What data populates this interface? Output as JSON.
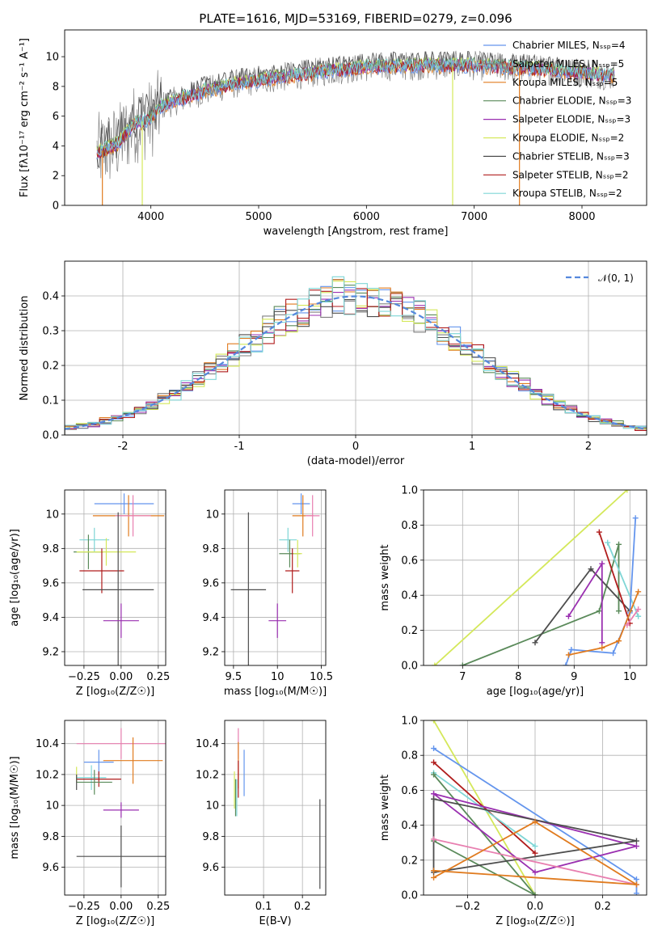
{
  "title": "PLATE=1616, MJD=53169, FIBERID=0279, z=0.096",
  "colors": {
    "chabrier_miles": "#6495ed",
    "salpeter_miles": "#808080",
    "kroupa_miles": "#e07b1f",
    "chabrier_elodie": "#5a8a5a",
    "salpeter_elodie": "#9a2fb0",
    "kroupa_elodie": "#d4e85a",
    "chabrier_stelib": "#4d4d4d",
    "salpeter_stelib": "#b01c1c",
    "kroupa_stelib": "#7fd6d6",
    "extra_pink": "#e87fb0"
  },
  "chart_data": [
    {
      "id": "spectrum",
      "type": "line",
      "title": "PLATE=1616, MJD=53169, FIBERID=0279, z=0.096",
      "xlabel": "wavelength [Angstrom, rest frame]",
      "ylabel": "Flux [fλ10⁻¹⁷ erg cm⁻² s⁻¹ A⁻¹]",
      "xlim": [
        3200,
        8600
      ],
      "ylim": [
        0,
        11.8
      ],
      "xticks": [
        4000,
        5000,
        6000,
        7000,
        8000
      ],
      "yticks": [
        0,
        2,
        4,
        6,
        8,
        10
      ],
      "legend_position": "upper-right",
      "series": [
        {
          "name": "Chabrier MILES, Nₛₛₚ=4",
          "color_key": "chabrier_miles"
        },
        {
          "name": "Salpeter MILES, Nₛₛₚ=5",
          "color_key": "salpeter_miles"
        },
        {
          "name": "Kroupa MILES, Nₛₛₚ=5",
          "color_key": "kroupa_miles"
        },
        {
          "name": "Chabrier ELODIE, Nₛₛₚ=3",
          "color_key": "chabrier_elodie"
        },
        {
          "name": "Salpeter ELODIE, Nₛₛₚ=3",
          "color_key": "salpeter_elodie"
        },
        {
          "name": "Kroupa ELODIE, Nₛₛₚ=2",
          "color_key": "kroupa_elodie"
        },
        {
          "name": "Chabrier STELIB, Nₛₛₚ=3",
          "color_key": "chabrier_stelib"
        },
        {
          "name": "Salpeter STELIB, Nₛₛₚ=2",
          "color_key": "salpeter_stelib"
        },
        {
          "name": "Kroupa STELIB, Nₛₛₚ=2",
          "color_key": "kroupa_stelib"
        }
      ],
      "continuum": [
        [
          3500,
          3.5
        ],
        [
          3700,
          4.2
        ],
        [
          3850,
          5.5
        ],
        [
          4000,
          5.8
        ],
        [
          4100,
          6.7
        ],
        [
          4300,
          7.2
        ],
        [
          4500,
          7.7
        ],
        [
          4800,
          8.2
        ],
        [
          5200,
          8.6
        ],
        [
          5600,
          9.0
        ],
        [
          6000,
          9.3
        ],
        [
          6500,
          9.4
        ],
        [
          7000,
          9.4
        ],
        [
          7500,
          9.2
        ],
        [
          8000,
          8.9
        ],
        [
          8300,
          8.7
        ]
      ],
      "spikes": [
        {
          "x": 3550,
          "y": 0,
          "color_key": "kroupa_miles"
        },
        {
          "x": 3920,
          "y": 0,
          "color_key": "kroupa_elodie"
        },
        {
          "x": 6800,
          "y": 0,
          "color_key": "kroupa_elodie"
        },
        {
          "x": 7420,
          "y": 0,
          "color_key": "kroupa_miles"
        }
      ]
    },
    {
      "id": "residuals",
      "type": "histogram",
      "xlabel": "(data-model)/error",
      "ylabel": "Normed distribution",
      "xlim": [
        -2.5,
        2.5
      ],
      "ylim": [
        0,
        0.5
      ],
      "xticks": [
        -2,
        -1,
        0,
        1,
        2
      ],
      "yticks": [
        0.0,
        0.1,
        0.2,
        0.3,
        0.4
      ],
      "grid": true,
      "bin_width": 0.1,
      "legend_position": "upper-right",
      "reference_curve": {
        "name": "𝒩(0, 1)",
        "color": "#5588dd",
        "style": "dashed"
      }
    },
    {
      "id": "age_vs_Z",
      "type": "errorbar",
      "xlabel": "Z [log₁₀(Z/Z☉)]",
      "ylabel": "age  [log₁₀(age/yr)]",
      "xlim": [
        -0.38,
        0.3
      ],
      "ylim": [
        9.12,
        10.14
      ],
      "xticks": [
        -0.25,
        0.0,
        0.25
      ],
      "xticklabels": [
        "−0.25",
        "0.00",
        "0.25"
      ],
      "yticks": [
        9.2,
        9.4,
        9.6,
        9.8,
        10.0
      ],
      "grid": true,
      "points": [
        {
          "x": 0.02,
          "y": 10.06,
          "xerr": 0.2,
          "yerr": 0.06,
          "color_key": "chabrier_miles"
        },
        {
          "x": 0.05,
          "y": 9.99,
          "xerr": 0.24,
          "yerr": 0.12,
          "color_key": "kroupa_miles"
        },
        {
          "x": 0.08,
          "y": 9.99,
          "xerr": 0.12,
          "yerr": 0.12,
          "color_key": "extra_pink"
        },
        {
          "x": -0.18,
          "y": 9.85,
          "xerr": 0.1,
          "yerr": 0.07,
          "color_key": "kroupa_stelib"
        },
        {
          "x": -0.22,
          "y": 9.78,
          "xerr": 0.1,
          "yerr": 0.1,
          "color_key": "chabrier_elodie"
        },
        {
          "x": -0.1,
          "y": 9.78,
          "xerr": 0.2,
          "yerr": 0.08,
          "color_key": "kroupa_elodie"
        },
        {
          "x": -0.13,
          "y": 9.67,
          "xerr": 0.15,
          "yerr": 0.13,
          "color_key": "salpeter_stelib"
        },
        {
          "x": -0.02,
          "y": 9.56,
          "xerr": 0.24,
          "yerr": 0.45,
          "color_key": "chabrier_stelib"
        },
        {
          "x": 0.0,
          "y": 9.38,
          "xerr": 0.12,
          "yerr": 0.1,
          "color_key": "salpeter_elodie"
        }
      ]
    },
    {
      "id": "age_vs_mass",
      "type": "errorbar",
      "xlabel": "mass [log₁₀(M/M☉)]",
      "ylabel": "",
      "xlim": [
        9.4,
        10.55
      ],
      "ylim": [
        9.12,
        10.14
      ],
      "xticks": [
        9.5,
        10.0,
        10.5
      ],
      "yticks": [
        9.2,
        9.4,
        9.6,
        9.8,
        10.0
      ],
      "grid": true,
      "points": [
        {
          "x": 10.27,
          "y": 10.06,
          "xerr": 0.1,
          "yerr": 0.06,
          "color_key": "chabrier_miles"
        },
        {
          "x": 10.29,
          "y": 9.99,
          "xerr": 0.12,
          "yerr": 0.12,
          "color_key": "kroupa_miles"
        },
        {
          "x": 10.4,
          "y": 9.99,
          "xerr": 0.08,
          "yerr": 0.12,
          "color_key": "extra_pink"
        },
        {
          "x": 10.12,
          "y": 9.85,
          "xerr": 0.1,
          "yerr": 0.07,
          "color_key": "kroupa_stelib"
        },
        {
          "x": 10.14,
          "y": 9.77,
          "xerr": 0.12,
          "yerr": 0.08,
          "color_key": "chabrier_elodie"
        },
        {
          "x": 10.23,
          "y": 9.77,
          "xerr": 0.05,
          "yerr": 0.08,
          "color_key": "kroupa_elodie"
        },
        {
          "x": 10.17,
          "y": 9.67,
          "xerr": 0.08,
          "yerr": 0.13,
          "color_key": "salpeter_stelib"
        },
        {
          "x": 9.67,
          "y": 9.56,
          "xerr": 0.2,
          "yerr": 0.45,
          "color_key": "chabrier_stelib"
        },
        {
          "x": 10.0,
          "y": 9.38,
          "xerr": 0.1,
          "yerr": 0.1,
          "color_key": "salpeter_elodie"
        }
      ]
    },
    {
      "id": "weight_vs_age",
      "type": "line",
      "xlabel": "age  [log₁₀(age/yr)]",
      "ylabel": "mass weight",
      "xlim": [
        6.3,
        10.3
      ],
      "ylim": [
        0,
        1.0
      ],
      "xticks": [
        7,
        8,
        9,
        10
      ],
      "yticks": [
        0.0,
        0.2,
        0.4,
        0.6,
        0.8,
        1.0
      ],
      "grid": true,
      "series": [
        {
          "color_key": "kroupa_elodie",
          "x": [
            6.5,
            9.95
          ],
          "y": [
            0.0,
            1.0
          ]
        },
        {
          "color_key": "chabrier_elodie",
          "x": [
            7.0,
            9.45,
            9.8,
            9.8
          ],
          "y": [
            0.0,
            0.31,
            0.69,
            0.31
          ]
        },
        {
          "color_key": "chabrier_stelib",
          "x": [
            8.3,
            9.3,
            10.0
          ],
          "y": [
            0.13,
            0.55,
            0.31
          ]
        },
        {
          "color_key": "salpeter_elodie",
          "x": [
            8.9,
            9.5,
            9.5
          ],
          "y": [
            0.28,
            0.58,
            0.13
          ]
        },
        {
          "color_key": "salpeter_stelib",
          "x": [
            9.45,
            10.0
          ],
          "y": [
            0.76,
            0.24
          ]
        },
        {
          "color_key": "kroupa_stelib",
          "x": [
            9.6,
            10.15
          ],
          "y": [
            0.7,
            0.28
          ]
        },
        {
          "color_key": "chabrier_miles",
          "x": [
            8.85,
            8.95,
            9.7,
            10.0,
            10.1
          ],
          "y": [
            0.0,
            0.09,
            0.07,
            0.3,
            0.84
          ]
        },
        {
          "color_key": "kroupa_miles",
          "x": [
            8.9,
            9.5,
            9.8,
            10.15
          ],
          "y": [
            0.06,
            0.1,
            0.14,
            0.42
          ]
        },
        {
          "color_key": "extra_pink",
          "x": [
            9.95,
            10.15
          ],
          "y": [
            0.23,
            0.32
          ]
        }
      ]
    },
    {
      "id": "mass_vs_Z",
      "type": "errorbar",
      "xlabel": "Z [log₁₀(Z/Z☉)]",
      "ylabel": "mass [log₁₀(M/M☉)]",
      "xlim": [
        -0.38,
        0.3
      ],
      "ylim": [
        9.42,
        10.55
      ],
      "xticks": [
        -0.25,
        0.0,
        0.25
      ],
      "xticklabels": [
        "−0.25",
        "0.00",
        "0.25"
      ],
      "yticks": [
        9.6,
        9.8,
        10.0,
        10.2,
        10.4
      ],
      "grid": true,
      "points": [
        {
          "x": 0.0,
          "y": 10.4,
          "xerr": 0.3,
          "yerr": 0.1,
          "color_key": "extra_pink"
        },
        {
          "x": 0.08,
          "y": 10.29,
          "xerr": 0.2,
          "yerr": 0.15,
          "color_key": "kroupa_miles"
        },
        {
          "x": -0.15,
          "y": 10.28,
          "xerr": 0.1,
          "yerr": 0.08,
          "color_key": "chabrier_miles"
        },
        {
          "x": -0.3,
          "y": 10.2,
          "xerr": 0.0,
          "yerr": 0.05,
          "color_key": "kroupa_elodie"
        },
        {
          "x": -0.2,
          "y": 10.18,
          "xerr": 0.1,
          "yerr": 0.08,
          "color_key": "kroupa_stelib"
        },
        {
          "x": -0.15,
          "y": 10.17,
          "xerr": 0.15,
          "yerr": 0.05,
          "color_key": "salpeter_stelib"
        },
        {
          "x": -0.18,
          "y": 10.15,
          "xerr": 0.12,
          "yerr": 0.08,
          "color_key": "chabrier_elodie"
        },
        {
          "x": -0.3,
          "y": 10.15,
          "xerr": 0.0,
          "yerr": 0.05,
          "color_key": "chabrier_stelib"
        },
        {
          "x": 0.0,
          "y": 9.97,
          "xerr": 0.12,
          "yerr": 0.05,
          "color_key": "salpeter_elodie"
        },
        {
          "x": 0.0,
          "y": 9.67,
          "xerr": 0.3,
          "yerr": 0.2,
          "color_key": "chabrier_stelib"
        }
      ]
    },
    {
      "id": "mass_vs_EBV",
      "type": "errorbar",
      "xlabel": "E(B-V)",
      "ylabel": "",
      "xlim": [
        0.0,
        0.26
      ],
      "ylim": [
        9.42,
        10.55
      ],
      "xticks": [
        0.1,
        0.2
      ],
      "yticks": [
        9.6,
        9.8,
        10.0,
        10.2,
        10.4
      ],
      "grid": true,
      "points": [
        {
          "x": 0.035,
          "y": 10.4,
          "yerr": 0.1,
          "color_key": "extra_pink"
        },
        {
          "x": 0.035,
          "y": 10.26,
          "yerr": 0.15,
          "color_key": "kroupa_miles"
        },
        {
          "x": 0.05,
          "y": 10.21,
          "yerr": 0.15,
          "color_key": "chabrier_miles"
        },
        {
          "x": 0.035,
          "y": 10.17,
          "yerr": 0.12,
          "color_key": "salpeter_stelib"
        },
        {
          "x": 0.025,
          "y": 10.1,
          "yerr": 0.12,
          "color_key": "kroupa_elodie"
        },
        {
          "x": 0.028,
          "y": 10.05,
          "yerr": 0.12,
          "color_key": "chabrier_elodie"
        },
        {
          "x": 0.031,
          "y": 10.05,
          "yerr": 0.12,
          "color_key": "kroupa_stelib"
        },
        {
          "x": 0.245,
          "y": 9.75,
          "yerr": 0.29,
          "color_key": "chabrier_stelib"
        }
      ]
    },
    {
      "id": "weight_vs_Z",
      "type": "line",
      "xlabel": "Z [log₁₀(Z/Z☉)]",
      "ylabel": "mass weight",
      "xlim": [
        -0.33,
        0.33
      ],
      "ylim": [
        0,
        1.0
      ],
      "xticks": [
        -0.2,
        0.0,
        0.2
      ],
      "xticklabels": [
        "−0.2",
        "0.0",
        "0.2"
      ],
      "yticks": [
        0.0,
        0.2,
        0.4,
        0.6,
        0.8,
        1.0
      ],
      "grid": true,
      "series": [
        {
          "color_key": "kroupa_elodie",
          "x": [
            -0.3,
            0.0
          ],
          "y": [
            1.0,
            0.0
          ]
        },
        {
          "color_key": "chabrier_miles",
          "x": [
            -0.3,
            0.3,
            0.3
          ],
          "y": [
            0.84,
            0.09,
            0.01
          ]
        },
        {
          "color_key": "salpeter_stelib",
          "x": [
            -0.3,
            0.0
          ],
          "y": [
            0.76,
            0.24
          ]
        },
        {
          "color_key": "kroupa_stelib",
          "x": [
            -0.3,
            0.0
          ],
          "y": [
            0.7,
            0.28
          ]
        },
        {
          "color_key": "chabrier_elodie",
          "x": [
            -0.3,
            0.0,
            -0.3
          ],
          "y": [
            0.69,
            0.0,
            0.31
          ]
        },
        {
          "color_key": "salpeter_elodie",
          "x": [
            -0.3,
            0.0,
            0.3,
            -0.3
          ],
          "y": [
            0.58,
            0.13,
            0.28,
            0.58
          ]
        },
        {
          "color_key": "chabrier_stelib",
          "x": [
            -0.3,
            0.3,
            -0.3,
            -0.3
          ],
          "y": [
            0.55,
            0.31,
            0.13,
            0.55
          ]
        },
        {
          "color_key": "extra_pink",
          "x": [
            -0.3,
            0.3
          ],
          "y": [
            0.32,
            0.06
          ]
        },
        {
          "color_key": "kroupa_miles",
          "x": [
            -0.3,
            0.0,
            0.3,
            -0.3
          ],
          "y": [
            0.1,
            0.42,
            0.06,
            0.14
          ]
        }
      ]
    }
  ]
}
